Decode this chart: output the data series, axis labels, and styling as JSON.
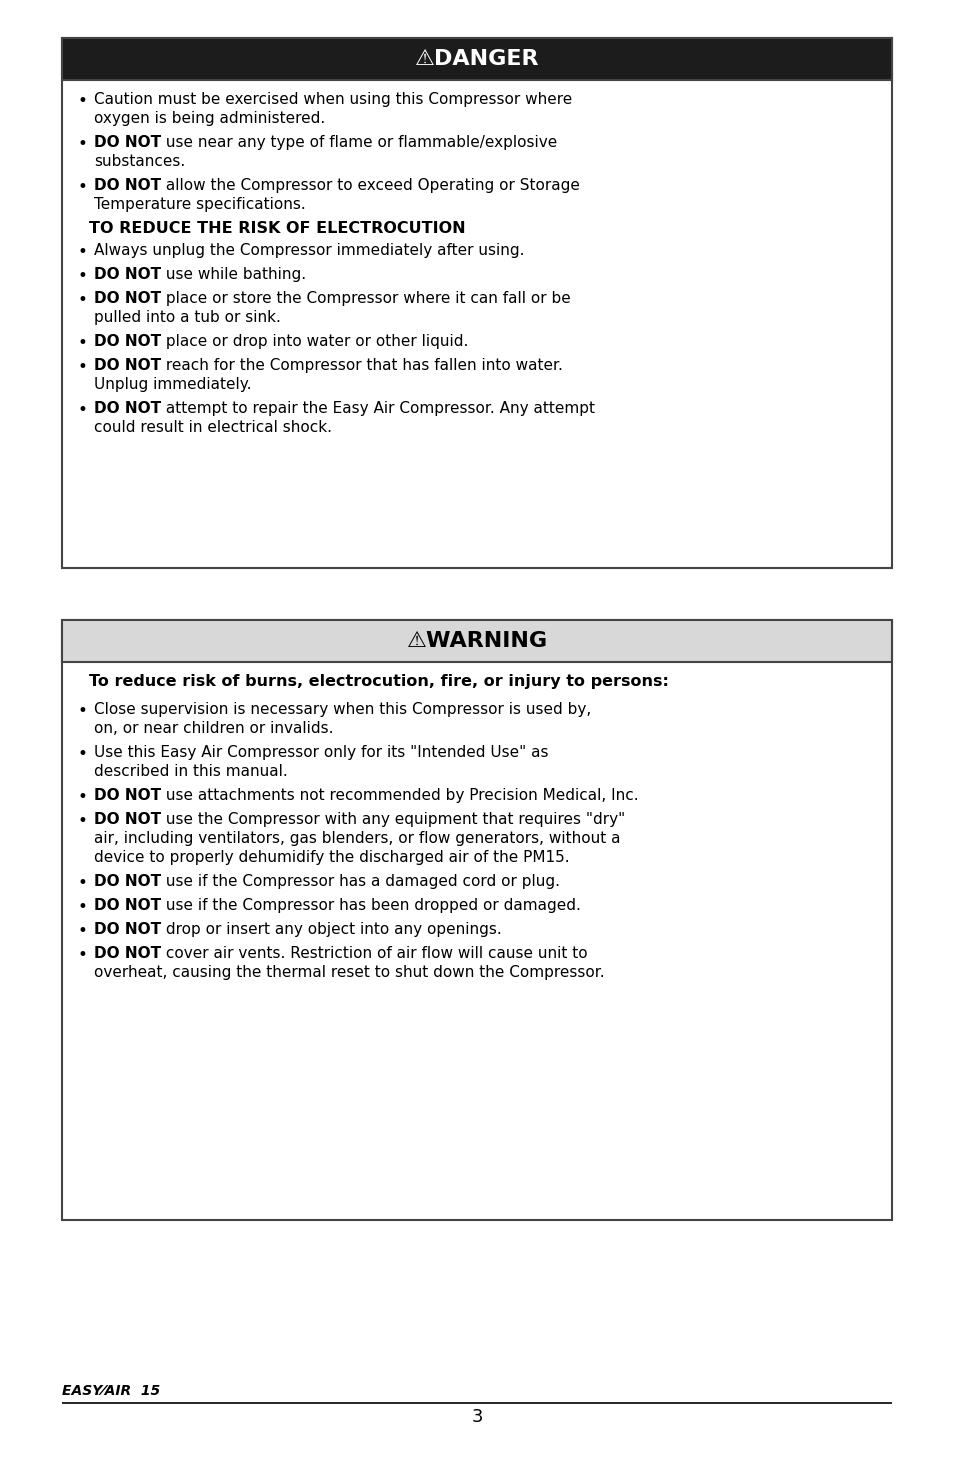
{
  "bg_color": "#ffffff",
  "danger_box": {
    "title": "⚠DANGER",
    "title_bg": "#1c1c1c",
    "title_color": "#ffffff",
    "title_fontsize": 16,
    "box_border": "#444444",
    "items": [
      {
        "bullet": true,
        "parts": [
          {
            "text": "Caution must be exercised when using this Compressor where\noxygen is being administered.",
            "bold": false
          }
        ]
      },
      {
        "bullet": true,
        "parts": [
          {
            "text": "DO NOT",
            "bold": true
          },
          {
            "text": " use near any type of flame or flammable/explosive\nsubstances.",
            "bold": false
          }
        ]
      },
      {
        "bullet": true,
        "parts": [
          {
            "text": "DO NOT",
            "bold": true
          },
          {
            "text": " allow the Compressor to exceed Operating or Storage\nTemperature specifications.",
            "bold": false
          }
        ]
      },
      {
        "bullet": false,
        "parts": [
          {
            "text": "TO REDUCE THE RISK OF ELECTROCUTION",
            "bold": true
          }
        ]
      },
      {
        "bullet": true,
        "parts": [
          {
            "text": "Always unplug the Compressor immediately after using.",
            "bold": false
          }
        ]
      },
      {
        "bullet": true,
        "parts": [
          {
            "text": "DO NOT",
            "bold": true
          },
          {
            "text": " use while bathing.",
            "bold": false
          }
        ]
      },
      {
        "bullet": true,
        "parts": [
          {
            "text": "DO NOT",
            "bold": true
          },
          {
            "text": " place or store the Compressor where it can fall or be\npulled into a tub or sink.",
            "bold": false
          }
        ]
      },
      {
        "bullet": true,
        "parts": [
          {
            "text": "DO NOT",
            "bold": true
          },
          {
            "text": " place or drop into water or other liquid.",
            "bold": false
          }
        ]
      },
      {
        "bullet": true,
        "parts": [
          {
            "text": "DO NOT",
            "bold": true
          },
          {
            "text": " reach for the Compressor that has fallen into water.\nUnplug immediately.",
            "bold": false
          }
        ]
      },
      {
        "bullet": true,
        "parts": [
          {
            "text": "DO NOT",
            "bold": true
          },
          {
            "text": " attempt to repair the Easy Air Compressor. Any attempt\ncould result in electrical shock.",
            "bold": false
          }
        ]
      }
    ]
  },
  "warning_box": {
    "title": "⚠WARNING",
    "title_bg": "#d8d8d8",
    "title_color": "#000000",
    "title_fontsize": 16,
    "box_border": "#444444",
    "intro": "To reduce risk of burns, electrocution, fire, or injury to persons:",
    "items": [
      {
        "bullet": true,
        "parts": [
          {
            "text": "Close supervision is necessary when this Compressor is used by,\non, or near children or invalids.",
            "bold": false
          }
        ]
      },
      {
        "bullet": true,
        "parts": [
          {
            "text": "Use this Easy Air Compressor only for its \"Intended Use\" as\ndescribed in this manual.",
            "bold": false
          }
        ]
      },
      {
        "bullet": true,
        "parts": [
          {
            "text": "DO NOT",
            "bold": true
          },
          {
            "text": " use attachments not recommended by Precision Medical, Inc.",
            "bold": false
          }
        ]
      },
      {
        "bullet": true,
        "parts": [
          {
            "text": "DO NOT",
            "bold": true
          },
          {
            "text": " use the Compressor with any equipment that requires \"dry\"\nair, including ventilators, gas blenders, or flow generators, without a\ndevice to properly dehumidify the discharged air of the PM15.",
            "bold": false
          }
        ]
      },
      {
        "bullet": true,
        "parts": [
          {
            "text": "DO NOT",
            "bold": true
          },
          {
            "text": " use if the Compressor has a damaged cord or plug.",
            "bold": false
          }
        ]
      },
      {
        "bullet": true,
        "parts": [
          {
            "text": "DO NOT",
            "bold": true
          },
          {
            "text": " use if the Compressor has been dropped or damaged.",
            "bold": false
          }
        ]
      },
      {
        "bullet": true,
        "parts": [
          {
            "text": "DO NOT",
            "bold": true
          },
          {
            "text": " drop or insert any object into any openings.",
            "bold": false
          }
        ]
      },
      {
        "bullet": true,
        "parts": [
          {
            "text": "DO NOT",
            "bold": true
          },
          {
            "text": " cover air vents. Restriction of air flow will cause unit to\noverheat, causing the thermal reset to shut down the Compressor.",
            "bold": false
          }
        ]
      }
    ]
  },
  "footer_brand": "EASY⁄AIR  15",
  "footer_page": "3"
}
